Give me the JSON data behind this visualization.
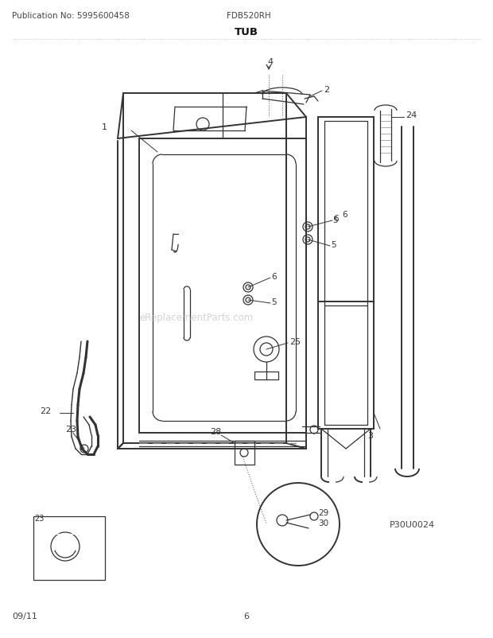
{
  "title": "TUB",
  "pub_no": "Publication No: 5995600458",
  "model": "FDB520RH",
  "date": "09/11",
  "page": "6",
  "part_code": "P30U0024",
  "bg_color": "#ffffff",
  "line_color": "#333333",
  "watermark": "eReplacementParts.com"
}
